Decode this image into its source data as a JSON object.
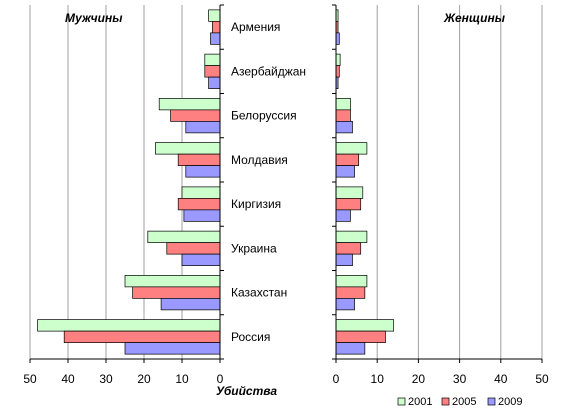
{
  "chart_data": {
    "type": "bar",
    "orientation": "horizontal",
    "x_axis_title": "Убийства",
    "categories": [
      "Армения",
      "Азербайджан",
      "Белоруссия",
      "Молдавия",
      "Киргизия",
      "Украина",
      "Казахстан",
      "Россия"
    ],
    "series_names": [
      "2001",
      "2005",
      "2009"
    ],
    "series_colors": [
      "#ccffcc",
      "#ff8080",
      "#9999ff"
    ],
    "men": {
      "title": "Мужчины",
      "xlim": [
        0,
        50
      ],
      "reversed_axis": true,
      "ticks": [
        "50",
        "40",
        "30",
        "20",
        "10",
        "0"
      ],
      "series": [
        {
          "name": "2001",
          "values": [
            3,
            4,
            16,
            17,
            10,
            19,
            25,
            48
          ]
        },
        {
          "name": "2005",
          "values": [
            2,
            4,
            13,
            11,
            11,
            14,
            23,
            41
          ]
        },
        {
          "name": "2009",
          "values": [
            2.5,
            3,
            9,
            9,
            9.5,
            10,
            15.5,
            25
          ]
        }
      ]
    },
    "women": {
      "title": "Женщины",
      "xlim": [
        0,
        50
      ],
      "ticks": [
        "0",
        "10",
        "20",
        "30",
        "40",
        "50"
      ],
      "series": [
        {
          "name": "2001",
          "values": [
            0.5,
            1,
            3.5,
            7.5,
            6.5,
            7.5,
            7.5,
            14
          ]
        },
        {
          "name": "2005",
          "values": [
            0.5,
            0.8,
            3.5,
            5.5,
            6,
            6,
            7,
            12
          ]
        },
        {
          "name": "2009",
          "values": [
            0.8,
            0.5,
            4,
            4.5,
            3.5,
            4,
            4.5,
            7
          ]
        }
      ]
    },
    "legend_position": "bottom-right",
    "grid": true
  }
}
